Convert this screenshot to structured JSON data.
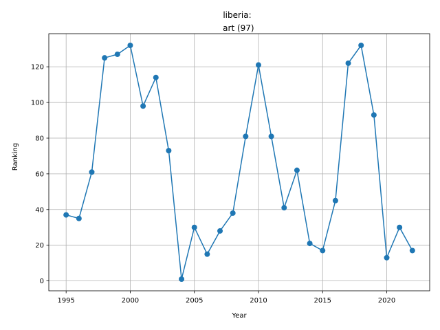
{
  "chart_data": {
    "type": "line",
    "title_line1": "liberia:",
    "title_line2": " art (97)",
    "xlabel": "Year",
    "ylabel": "Ranking",
    "xlim": [
      1993.65,
      2023.35
    ],
    "ylim": [
      -5.55,
      138.55
    ],
    "xticks": [
      1995,
      2000,
      2005,
      2010,
      2015,
      2020
    ],
    "yticks": [
      0,
      20,
      40,
      60,
      80,
      100,
      120
    ],
    "grid": true,
    "color": "#1f77b4",
    "x": [
      1995,
      1996,
      1997,
      1998,
      1999,
      2000,
      2001,
      2002,
      2003,
      2004,
      2005,
      2006,
      2007,
      2008,
      2009,
      2010,
      2011,
      2012,
      2013,
      2014,
      2015,
      2016,
      2017,
      2018,
      2019,
      2020,
      2021,
      2022
    ],
    "series": [
      {
        "values": [
          37,
          35,
          61,
          125,
          127,
          132,
          98,
          114,
          73,
          1,
          30,
          15,
          28,
          38,
          81,
          121,
          81,
          41,
          62,
          21,
          17,
          45,
          122,
          132,
          93,
          13,
          30,
          17
        ]
      }
    ]
  }
}
